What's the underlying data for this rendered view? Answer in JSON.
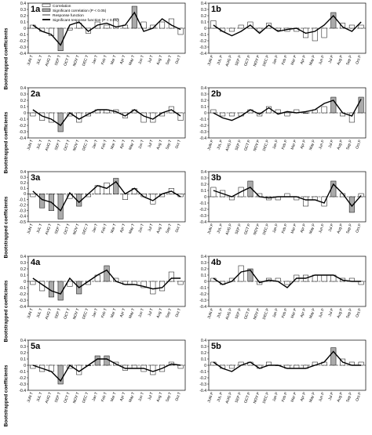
{
  "figure": {
    "y_axis_label": "Bootstrapped coefficients",
    "legend": [
      {
        "label": "Correlation",
        "style": "open-bar"
      },
      {
        "label": "Significant correlation (P < 0.05)",
        "style": "grey-bar"
      },
      {
        "label": "Response function",
        "style": "thin-line"
      },
      {
        "label": "Significant response function (P < 0.05)",
        "style": "thick-line"
      }
    ],
    "colors": {
      "significant_fill": "#aaaaaa",
      "open_fill": "#ffffff",
      "line": "#000000"
    }
  },
  "chart_data": [
    {
      "type": "bar",
      "panel": "1a",
      "categories": [
        "JUN T",
        "JUL T",
        "AUG T",
        "SEP T",
        "OCT T",
        "NOV T",
        "DEC T",
        "Jan T",
        "Feb T",
        "Mar T",
        "Apr T",
        "May T",
        "Jun T",
        "Jul T",
        "Aug T",
        "Sep T",
        "Oct T"
      ],
      "correlation": [
        0.05,
        -0.05,
        -0.12,
        -0.36,
        -0.03,
        0.08,
        -0.08,
        0.1,
        0.05,
        0.15,
        0.05,
        0.35,
        0.1,
        0.05,
        0.1,
        0.15,
        -0.1
      ],
      "significant": [
        false,
        false,
        false,
        true,
        false,
        false,
        false,
        false,
        false,
        false,
        false,
        true,
        false,
        false,
        false,
        false,
        false
      ],
      "response": [
        0.05,
        -0.05,
        -0.1,
        -0.27,
        0.05,
        0.1,
        -0.05,
        0.05,
        0.08,
        0.02,
        0.05,
        0.25,
        -0.05,
        0.0,
        0.15,
        0.05,
        -0.02
      ],
      "ylim": [
        -0.4,
        0.4
      ],
      "yticks": [
        0.4,
        0.3,
        0.2,
        0.1,
        0,
        -0.1,
        -0.2,
        -0.3,
        -0.4
      ]
    },
    {
      "type": "bar",
      "panel": "1b",
      "categories": [
        "JUN P",
        "JUL P",
        "AUG P",
        "SEP P",
        "OCT P",
        "NOV P",
        "DEC P",
        "Jan P",
        "Feb P",
        "Mar P",
        "Apr P",
        "May P",
        "Jun P",
        "Jul P",
        "Aug P",
        "Sep P",
        "Oct P"
      ],
      "correlation": [
        0.12,
        -0.05,
        -0.05,
        0.05,
        0.1,
        -0.05,
        0.08,
        -0.03,
        -0.05,
        -0.05,
        -0.15,
        -0.2,
        -0.15,
        0.25,
        0.08,
        0.05,
        0.05
      ],
      "significant": [
        false,
        false,
        false,
        false,
        false,
        false,
        false,
        false,
        false,
        false,
        false,
        false,
        false,
        true,
        false,
        false,
        false
      ],
      "response": [
        0.05,
        -0.05,
        -0.12,
        -0.05,
        0.05,
        -0.08,
        0.05,
        -0.05,
        -0.02,
        0.0,
        -0.08,
        -0.05,
        0.05,
        0.2,
        0.02,
        -0.05,
        0.1
      ],
      "ylim": [
        -0.4,
        0.4
      ],
      "yticks": [
        0.4,
        0.3,
        0.2,
        0.1,
        0,
        -0.1,
        -0.2,
        -0.3,
        -0.4
      ]
    },
    {
      "type": "bar",
      "panel": "2a",
      "categories": [
        "JUN T",
        "JUL T",
        "AUG T",
        "SEP T",
        "OCT T",
        "NOV T",
        "DEC T",
        "Jan T",
        "Feb T",
        "Mar T",
        "Apr T",
        "May T",
        "Jun T",
        "Jul T",
        "Aug T",
        "Sep T",
        "Oct T"
      ],
      "correlation": [
        -0.05,
        -0.12,
        -0.15,
        -0.3,
        -0.05,
        -0.15,
        -0.05,
        0.05,
        0.05,
        0.05,
        -0.08,
        0.05,
        -0.15,
        -0.15,
        -0.05,
        0.1,
        -0.12
      ],
      "significant": [
        false,
        false,
        false,
        true,
        false,
        false,
        false,
        false,
        false,
        false,
        false,
        false,
        false,
        false,
        false,
        false,
        false
      ],
      "response": [
        0.05,
        -0.05,
        -0.1,
        -0.2,
        0.0,
        -0.1,
        -0.02,
        0.05,
        0.05,
        0.02,
        -0.05,
        0.05,
        -0.05,
        -0.1,
        0.0,
        0.05,
        -0.05
      ],
      "ylim": [
        -0.4,
        0.4
      ],
      "yticks": [
        0.4,
        0.3,
        0.2,
        0.1,
        0,
        -0.1,
        -0.2,
        -0.3,
        -0.4
      ]
    },
    {
      "type": "bar",
      "panel": "2b",
      "categories": [
        "JUN P",
        "JUL P",
        "AUG P",
        "SEP P",
        "OCT P",
        "NOV P",
        "DEC P",
        "Jan P",
        "Feb P",
        "Mar P",
        "Apr P",
        "May P",
        "Jun P",
        "Jul P",
        "Aug P",
        "Sep P",
        "Oct P"
      ],
      "correlation": [
        0.05,
        -0.05,
        -0.05,
        -0.05,
        0.05,
        -0.05,
        0.1,
        0.05,
        -0.05,
        0.05,
        0.0,
        0.05,
        0.1,
        0.25,
        -0.05,
        -0.15,
        0.25
      ],
      "significant": [
        false,
        false,
        false,
        false,
        false,
        false,
        false,
        false,
        false,
        false,
        false,
        false,
        false,
        true,
        false,
        false,
        true
      ],
      "response": [
        0.0,
        -0.08,
        -0.12,
        -0.05,
        0.05,
        -0.02,
        0.08,
        -0.02,
        0.02,
        0.0,
        0.02,
        0.05,
        0.15,
        0.2,
        0.0,
        -0.05,
        0.22
      ],
      "ylim": [
        -0.4,
        0.4
      ],
      "yticks": [
        0.4,
        0.3,
        0.2,
        0.1,
        0,
        -0.1,
        -0.2,
        -0.3,
        -0.4
      ]
    },
    {
      "type": "bar",
      "panel": "3a",
      "categories": [
        "JUN T",
        "JUL T",
        "AUG T",
        "SEP T",
        "OCT T",
        "NOV T",
        "DEC T",
        "Jan T",
        "Feb T",
        "Mar T",
        "Apr T",
        "May T",
        "Jun T",
        "Jul T",
        "Aug T",
        "Sep T",
        "Oct T"
      ],
      "correlation": [
        -0.05,
        -0.25,
        -0.3,
        -0.45,
        -0.08,
        -0.22,
        -0.05,
        0.15,
        0.2,
        0.28,
        -0.1,
        0.1,
        -0.05,
        -0.18,
        -0.05,
        0.1,
        -0.05
      ],
      "significant": [
        false,
        true,
        true,
        true,
        false,
        true,
        false,
        false,
        false,
        true,
        false,
        false,
        false,
        false,
        false,
        false,
        false
      ],
      "response": [
        0.05,
        -0.1,
        -0.15,
        -0.3,
        0.02,
        -0.15,
        0.0,
        0.15,
        0.1,
        0.22,
        0.0,
        0.1,
        -0.05,
        -0.12,
        0.0,
        0.05,
        -0.05
      ],
      "ylim": [
        -0.5,
        0.4
      ],
      "yticks": [
        0.4,
        0.3,
        0.2,
        0.1,
        0,
        -0.1,
        -0.2,
        -0.3,
        -0.4,
        -0.5
      ]
    },
    {
      "type": "bar",
      "panel": "3b",
      "categories": [
        "JUN P",
        "JUL P",
        "AUG P",
        "SEP P",
        "OCT P",
        "NOV P",
        "DEC P",
        "Jan P",
        "Feb P",
        "Mar P",
        "Apr P",
        "May P",
        "Jun P",
        "Jul P",
        "Aug P",
        "Sep P",
        "Oct P"
      ],
      "correlation": [
        0.15,
        0.1,
        -0.05,
        0.15,
        0.25,
        0.05,
        -0.05,
        -0.05,
        0.05,
        -0.05,
        -0.15,
        -0.05,
        -0.15,
        0.25,
        0.05,
        -0.25,
        0.05
      ],
      "significant": [
        false,
        false,
        false,
        false,
        true,
        false,
        false,
        false,
        false,
        false,
        false,
        false,
        false,
        true,
        false,
        true,
        false
      ],
      "response": [
        0.1,
        0.05,
        0.0,
        0.08,
        0.15,
        0.0,
        -0.02,
        0.0,
        0.0,
        0.0,
        -0.05,
        -0.05,
        -0.1,
        0.2,
        0.05,
        -0.15,
        0.02
      ],
      "ylim": [
        -0.4,
        0.4
      ],
      "yticks": [
        0.4,
        0.3,
        0.2,
        0.1,
        0,
        -0.1,
        -0.2,
        -0.3,
        -0.4
      ]
    },
    {
      "type": "bar",
      "panel": "4a",
      "categories": [
        "JUN T",
        "JUL T",
        "AUG T",
        "SEP T",
        "OCT T",
        "NOV T",
        "DEC T",
        "Jan T",
        "Feb T",
        "Mar T",
        "Apr T",
        "May T",
        "Jun T",
        "Jul T",
        "Aug T",
        "Sep T",
        "Oct T"
      ],
      "correlation": [
        -0.05,
        -0.15,
        -0.25,
        -0.3,
        -0.08,
        -0.2,
        -0.05,
        0.1,
        0.25,
        0.05,
        -0.05,
        -0.05,
        -0.1,
        -0.2,
        -0.15,
        0.15,
        -0.05
      ],
      "significant": [
        false,
        false,
        true,
        true,
        false,
        true,
        false,
        false,
        true,
        false,
        false,
        false,
        false,
        false,
        false,
        false,
        false
      ],
      "response": [
        0.05,
        -0.05,
        -0.15,
        -0.2,
        0.05,
        -0.1,
        0.0,
        0.1,
        0.18,
        0.0,
        -0.05,
        -0.05,
        -0.08,
        -0.12,
        -0.1,
        0.05,
        0.05
      ],
      "ylim": [
        -0.4,
        0.4
      ],
      "yticks": [
        0.4,
        0.3,
        0.2,
        0.1,
        0,
        -0.1,
        -0.2,
        -0.3,
        -0.4
      ]
    },
    {
      "type": "bar",
      "panel": "4b",
      "categories": [
        "JUN P",
        "JUL P",
        "AUG P",
        "SEP P",
        "OCT P",
        "NOV P",
        "DEC P",
        "Jan P",
        "Feb P",
        "Mar P",
        "Apr P",
        "May P",
        "Jun P",
        "Jul P",
        "Aug P",
        "Sep P",
        "Oct P"
      ],
      "correlation": [
        0.05,
        -0.05,
        0.05,
        0.25,
        0.2,
        -0.05,
        0.05,
        0.05,
        -0.05,
        0.1,
        0.1,
        0.1,
        0.1,
        0.1,
        0.05,
        0.05,
        -0.05
      ],
      "significant": [
        false,
        false,
        false,
        false,
        true,
        false,
        false,
        false,
        false,
        false,
        false,
        false,
        false,
        false,
        false,
        false,
        false
      ],
      "response": [
        0.05,
        -0.05,
        0.0,
        0.15,
        0.18,
        -0.02,
        0.02,
        0.0,
        -0.1,
        0.05,
        0.05,
        0.1,
        0.1,
        0.1,
        0.02,
        0.0,
        0.0
      ],
      "ylim": [
        -0.4,
        0.4
      ],
      "yticks": [
        0.4,
        0.3,
        0.2,
        0.1,
        0,
        -0.1,
        -0.2,
        -0.3,
        -0.4
      ]
    },
    {
      "type": "bar",
      "panel": "5a",
      "categories": [
        "JUN T",
        "JUL T",
        "AUG T",
        "SEP T",
        "OCT T",
        "NOV T",
        "DEC T",
        "Jan T",
        "Feb T",
        "Mar T",
        "Apr T",
        "May T",
        "Jun T",
        "Jul T",
        "Aug T",
        "Sep T",
        "Oct T"
      ],
      "correlation": [
        -0.05,
        -0.1,
        -0.1,
        -0.3,
        -0.05,
        -0.15,
        0.0,
        0.15,
        0.15,
        0.05,
        -0.08,
        -0.05,
        -0.1,
        -0.15,
        -0.1,
        0.05,
        -0.05
      ],
      "significant": [
        false,
        false,
        false,
        true,
        false,
        false,
        false,
        true,
        true,
        false,
        false,
        false,
        false,
        false,
        false,
        false,
        false
      ],
      "response": [
        0.0,
        -0.05,
        -0.1,
        -0.25,
        0.0,
        -0.1,
        0.0,
        0.1,
        0.1,
        0.02,
        -0.05,
        -0.05,
        -0.05,
        -0.1,
        -0.05,
        0.02,
        0.0
      ],
      "ylim": [
        -0.4,
        0.4
      ],
      "yticks": [
        0.4,
        0.3,
        0.2,
        0.1,
        0,
        -0.1,
        -0.2,
        -0.3,
        -0.4
      ]
    },
    {
      "type": "bar",
      "panel": "5b",
      "categories": [
        "JUN P",
        "JUL P",
        "AUG P",
        "SEP P",
        "OCT P",
        "NOV P",
        "DEC P",
        "Jan P",
        "Feb P",
        "Mar P",
        "Apr P",
        "May P",
        "Jun P",
        "Jul P",
        "Aug P",
        "Sep P",
        "Oct P"
      ],
      "correlation": [
        0.05,
        -0.05,
        -0.05,
        0.05,
        0.05,
        -0.05,
        0.05,
        0.0,
        -0.05,
        -0.05,
        -0.05,
        0.05,
        0.05,
        0.28,
        0.1,
        0.05,
        0.05
      ],
      "significant": [
        false,
        false,
        false,
        false,
        false,
        false,
        false,
        false,
        false,
        false,
        false,
        false,
        false,
        true,
        false,
        false,
        false
      ],
      "response": [
        0.05,
        -0.05,
        -0.1,
        0.0,
        0.05,
        -0.05,
        0.0,
        0.0,
        -0.05,
        -0.05,
        -0.05,
        0.0,
        0.05,
        0.22,
        0.05,
        0.0,
        0.0
      ],
      "ylim": [
        -0.4,
        0.4
      ],
      "yticks": [
        0.4,
        0.3,
        0.2,
        0.1,
        0,
        -0.1,
        -0.2,
        -0.3,
        -0.4
      ]
    }
  ]
}
